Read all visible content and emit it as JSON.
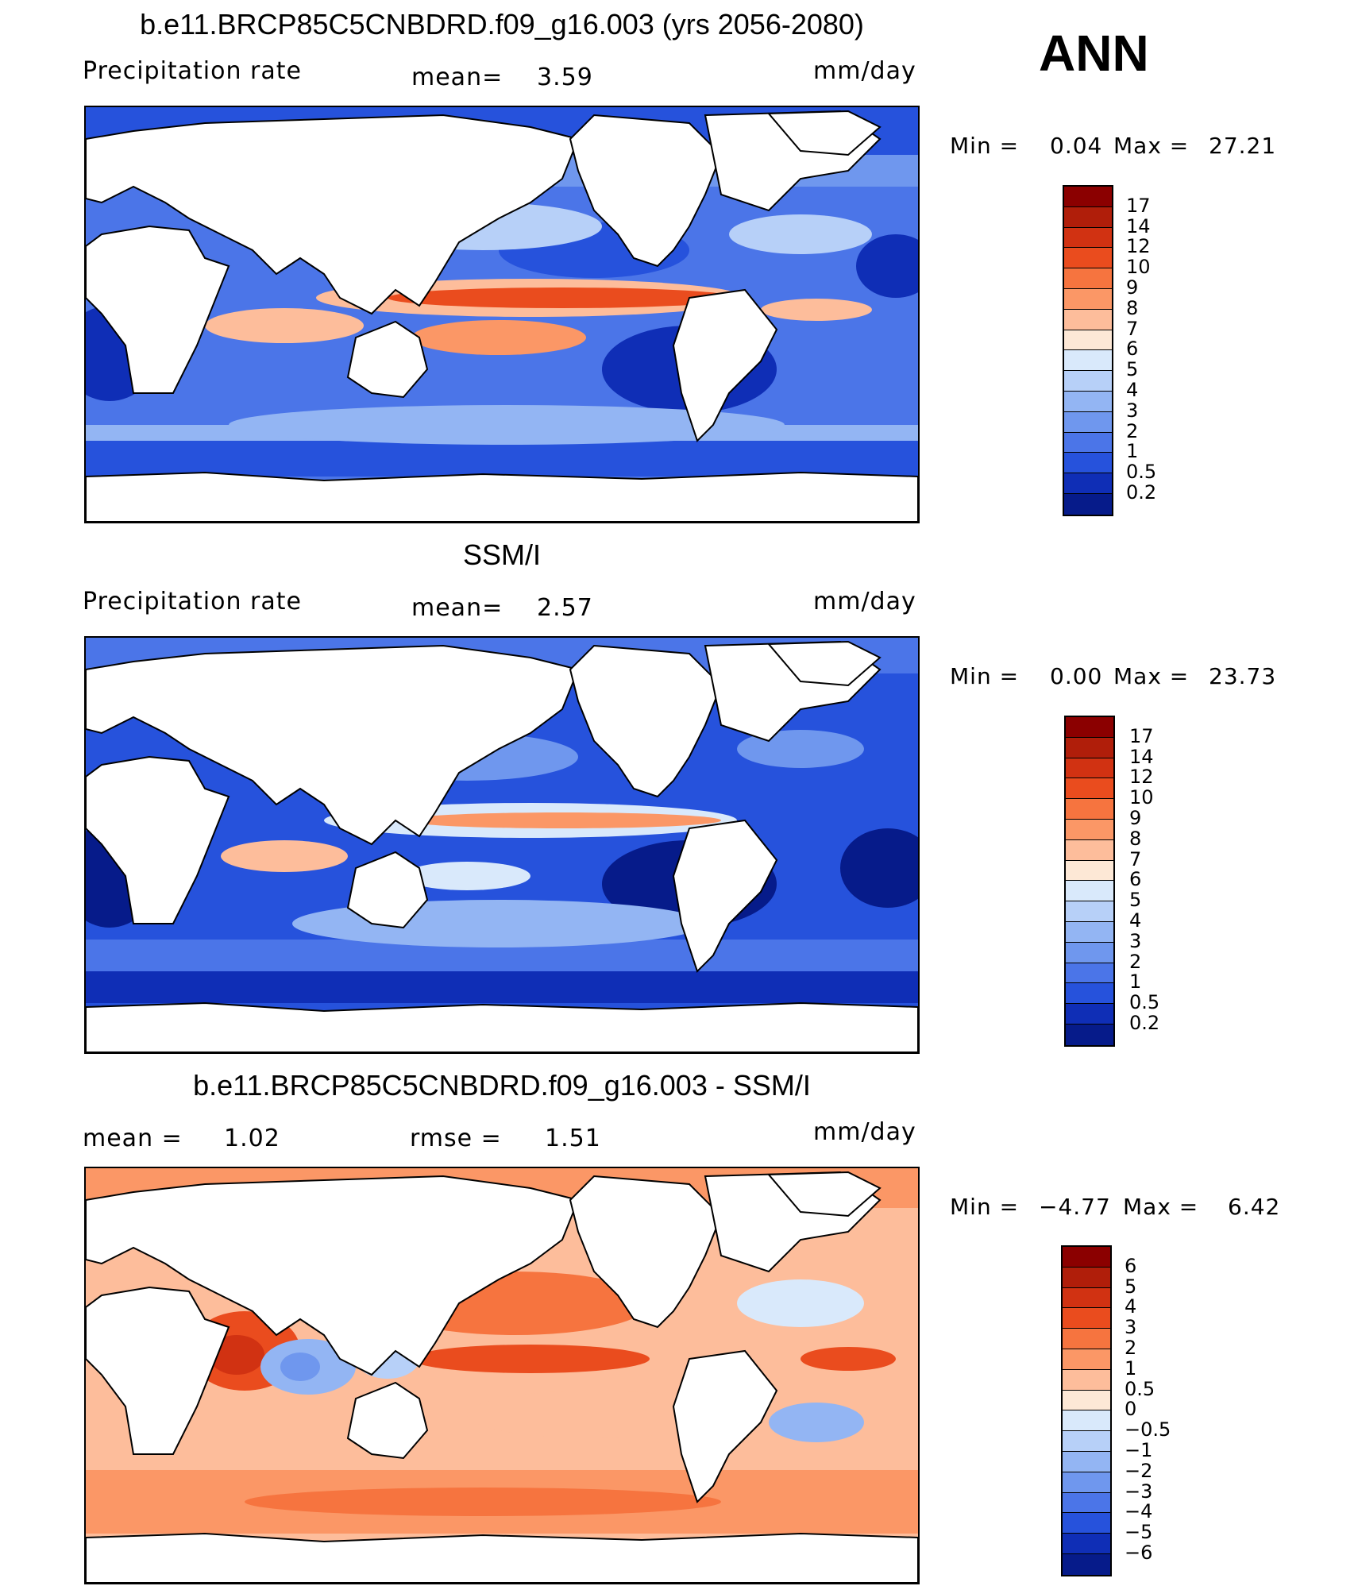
{
  "season": "ANN",
  "panels": [
    {
      "title": "b.e11.BRCP85C5CNBDRD.f09_g16.003 (yrs 2056-2080)",
      "left_label": "Precipitation  rate",
      "mid_label": "mean=",
      "mid_value": "3.59",
      "units": "mm/day",
      "min_label": "Min  =",
      "min_value": "0.04",
      "max_label": "Max  =",
      "max_value": "27.21",
      "colorbar": {
        "labels": [
          "17",
          "14",
          "12",
          "10",
          "9",
          "8",
          "7",
          "6",
          "5",
          "4",
          "3",
          "2",
          "1",
          "0.5",
          "0.2"
        ],
        "colors": [
          "#8b0000",
          "#b01e0a",
          "#d13212",
          "#ea4c1e",
          "#f6743f",
          "#fb9766",
          "#fdbd9b",
          "#fde8d6",
          "#d9e9fb",
          "#b7d0f8",
          "#93b5f3",
          "#6f97ee",
          "#4b75e8",
          "#2652dc",
          "#0f2eb6",
          "#061b8a"
        ]
      }
    },
    {
      "title": "SSM/I",
      "left_label": "Precipitation  rate",
      "mid_label": "mean=",
      "mid_value": "2.57",
      "units": "mm/day",
      "min_label": "Min  =",
      "min_value": "0.00",
      "max_label": "Max  =",
      "max_value": "23.73",
      "colorbar": {
        "labels": [
          "17",
          "14",
          "12",
          "10",
          "9",
          "8",
          "7",
          "6",
          "5",
          "4",
          "3",
          "2",
          "1",
          "0.5",
          "0.2"
        ],
        "colors": [
          "#8b0000",
          "#b01e0a",
          "#d13212",
          "#ea4c1e",
          "#f6743f",
          "#fb9766",
          "#fdbd9b",
          "#fde8d6",
          "#d9e9fb",
          "#b7d0f8",
          "#93b5f3",
          "#6f97ee",
          "#4b75e8",
          "#2652dc",
          "#0f2eb6",
          "#061b8a"
        ]
      }
    },
    {
      "title": "b.e11.BRCP85C5CNBDRD.f09_g16.003 - SSM/I",
      "left_label": "mean  =",
      "left_value": "1.02",
      "mid_label": "rmse  =",
      "mid_value": "1.51",
      "units": "mm/day",
      "min_label": "Min  =",
      "min_value": "−4.77",
      "max_label": "Max  =",
      "max_value": "6.42",
      "colorbar": {
        "labels": [
          "6",
          "5",
          "4",
          "3",
          "2",
          "1",
          "0.5",
          "0",
          "−0.5",
          "−1",
          "−2",
          "−3",
          "−4",
          "−5",
          "−6"
        ],
        "colors": [
          "#8b0000",
          "#b01e0a",
          "#d13212",
          "#ea4c1e",
          "#f6743f",
          "#fb9766",
          "#fdbd9b",
          "#fde8d6",
          "#d9e9fb",
          "#b7d0f8",
          "#93b5f3",
          "#6f97ee",
          "#4b75e8",
          "#2652dc",
          "#0f2eb6",
          "#061b8a"
        ]
      }
    }
  ],
  "colors": {
    "land": "#ffffff",
    "coast": "#000000",
    "ocean_deep_blue": "#0f2eb6",
    "ocean_blue": "#4b75e8",
    "ocean_light": "#93b5f3",
    "warm_light": "#fdbd9b",
    "warm": "#f6743f",
    "warm_strong": "#d13212"
  }
}
